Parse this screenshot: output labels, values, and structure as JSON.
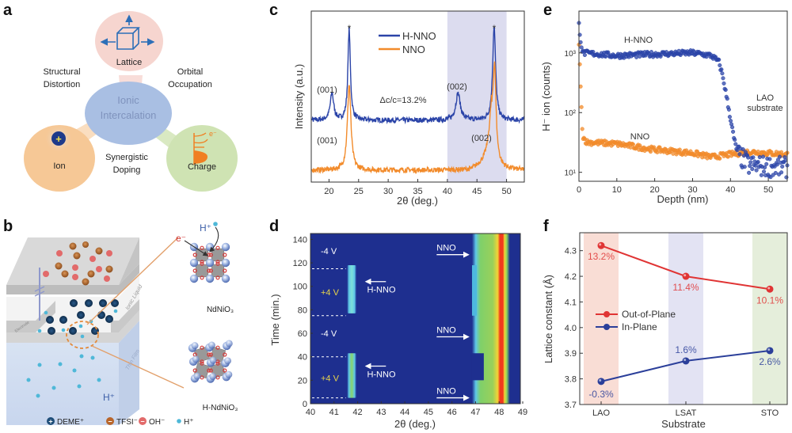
{
  "figure": {
    "panels": [
      "a",
      "b",
      "c",
      "d",
      "e",
      "f"
    ]
  },
  "panel_a": {
    "label": "a",
    "center": [
      "Ionic",
      "Intercalation"
    ],
    "nodes": [
      {
        "name": "Lattice",
        "color": "#f6d5cf"
      },
      {
        "name": "Ion",
        "color": "#f6c896"
      },
      {
        "name": "Charge",
        "color": "#cfe3b3"
      }
    ],
    "relations": {
      "top_left": [
        "Structural",
        "Distortion"
      ],
      "top_right": [
        "Orbital",
        "Occupation"
      ],
      "bottom": [
        "Synergistic",
        "Doping"
      ]
    },
    "charge_symbol": "e⁻",
    "ion_symbol": "+"
  },
  "panel_b": {
    "label": "b",
    "device_labels": {
      "ionic_liquid": "Ionic Liquid",
      "thin_film": "Thin Film",
      "electrode": "Electrode",
      "proton": "H⁺"
    },
    "structures": [
      {
        "name": "NdNiO₃",
        "annotations": [
          "H⁺",
          "e⁻"
        ]
      },
      {
        "name": "H-NdNiO₃"
      }
    ],
    "legend": [
      {
        "symbol": "+",
        "label": "DEME⁺",
        "color": "#1f4e79"
      },
      {
        "symbol": "−",
        "label": "TFSI⁻",
        "color": "#b8652a"
      },
      {
        "symbol": "−",
        "label": "OH⁻",
        "color": "#e26a6a"
      },
      {
        "symbol": "•",
        "label": "H⁺",
        "color": "#4fb8d8"
      }
    ]
  },
  "chart_data": [
    {
      "id": "c",
      "type": "line",
      "label": "c",
      "title": "",
      "xlabel": "2θ (deg.)",
      "ylabel": "Intensity (a.u.)",
      "xlim": [
        17,
        53
      ],
      "xticks": [
        20,
        25,
        30,
        35,
        40,
        45,
        50
      ],
      "yticks": [],
      "shaded_region": {
        "x": [
          40,
          50
        ],
        "color": "#dcdcef"
      },
      "series": [
        {
          "name": "H-NNO",
          "color": "#2b44a8",
          "offset": 0.55,
          "peaks": [
            {
              "x": 20.5,
              "h": 0.19,
              "w": 0.35
            },
            {
              "x": 23.4,
              "h": 0.64,
              "w": 0.25
            },
            {
              "x": 41.8,
              "h": 0.19,
              "w": 0.45
            },
            {
              "x": 47.9,
              "h": 0.66,
              "w": 0.3
            }
          ],
          "baseline": 0.0
        },
        {
          "name": "NNO",
          "color": "#f28b2b",
          "offset": 0.0,
          "peaks": [
            {
              "x": 23.4,
              "h": 0.6,
              "w": 0.35
            },
            {
              "x": 47.6,
              "h": 0.38,
              "w": 0.6
            },
            {
              "x": 48.0,
              "h": 0.5,
              "w": 0.25
            }
          ],
          "baseline": 0.0
        }
      ],
      "annotations": [
        {
          "text": "(001)",
          "x": 20.5,
          "series": "H-NNO"
        },
        {
          "text": "(002)",
          "x": 41.8,
          "series": "H-NNO"
        },
        {
          "text": "(001)",
          "x": 23.4,
          "series": "NNO"
        },
        {
          "text": "(002)",
          "x": 47.6,
          "series": "NNO"
        },
        {
          "text": "*",
          "x": 23.4
        },
        {
          "text": "*",
          "x": 47.9
        },
        {
          "text": "Δc/c=13.2%"
        }
      ],
      "legend": "top-center"
    },
    {
      "id": "d",
      "type": "heatmap",
      "label": "d",
      "xlabel": "2θ (deg.)",
      "ylabel": "Time (min.)",
      "xlim": [
        40,
        49
      ],
      "ylim": [
        0,
        145
      ],
      "xticks": [
        40,
        41,
        42,
        43,
        44,
        45,
        46,
        47,
        48,
        49
      ],
      "yticks": [
        0,
        20,
        40,
        60,
        80,
        100,
        120,
        140
      ],
      "background": "#1e2f8f",
      "voltage_segments": [
        {
          "label": "+4 V",
          "t": [
            5,
            40
          ],
          "color": "#e8d44a"
        },
        {
          "label": "-4 V",
          "t": [
            40,
            75
          ],
          "color": "#ffffff"
        },
        {
          "label": "+4 V",
          "t": [
            75,
            115
          ],
          "color": "#e8d44a"
        },
        {
          "label": "-4 V",
          "t": [
            115,
            145
          ],
          "color": "#ffffff"
        }
      ],
      "dashed_lines_t": [
        5,
        40,
        75,
        115
      ],
      "features": [
        {
          "name": "H-NNO",
          "x_center": 41.75,
          "t": [
            5,
            43
          ]
        },
        {
          "name": "H-NNO",
          "x_center": 41.75,
          "t": [
            77,
            118
          ]
        },
        {
          "name": "NNO",
          "x_center": 48.0,
          "t": [
            0,
            145
          ]
        }
      ],
      "arrow_labels": [
        {
          "text": "H-NNO",
          "t": 28,
          "direction": "left"
        },
        {
          "text": "H-NNO",
          "t": 100,
          "direction": "left"
        },
        {
          "text": "NNO",
          "t": 5,
          "direction": "right"
        },
        {
          "text": "NNO",
          "t": 57,
          "direction": "right"
        },
        {
          "text": "NNO",
          "t": 127,
          "direction": "right"
        }
      ]
    },
    {
      "id": "e",
      "type": "scatter",
      "label": "e",
      "xlabel": "Depth (nm)",
      "ylabel": "H⁻ ion (counts)",
      "yscale": "log",
      "xlim": [
        0,
        55
      ],
      "ylim_log10": [
        0.85,
        3.7
      ],
      "xticks": [
        0,
        10,
        20,
        30,
        40,
        50
      ],
      "yticks": [
        "10¹",
        "10²",
        "10³"
      ],
      "series": [
        {
          "name": "H-NNO",
          "color": "#2b44a8",
          "profile": [
            [
              0,
              3000
            ],
            [
              0.5,
              1500
            ],
            [
              1,
              1000
            ],
            [
              10,
              900
            ],
            [
              20,
              950
            ],
            [
              30,
              1000
            ],
            [
              35,
              900
            ],
            [
              37,
              700
            ],
            [
              38,
              400
            ],
            [
              39,
              180
            ],
            [
              40,
              80
            ],
            [
              41,
              35
            ],
            [
              42,
              20
            ],
            [
              45,
              13
            ],
            [
              55,
              12
            ]
          ]
        },
        {
          "name": "NNO",
          "color": "#f28b2b",
          "profile": [
            [
              0,
              1500
            ],
            [
              0.5,
              200
            ],
            [
              1,
              40
            ],
            [
              2,
              32
            ],
            [
              10,
              30
            ],
            [
              20,
              24
            ],
            [
              30,
              21
            ],
            [
              35,
              18
            ],
            [
              40,
              20
            ],
            [
              45,
              22
            ],
            [
              55,
              20
            ]
          ]
        }
      ],
      "annotations": [
        {
          "text": "H-NNO"
        },
        {
          "text": "NNO"
        },
        {
          "text": "LAO"
        },
        {
          "text": "substrate"
        }
      ]
    },
    {
      "id": "f",
      "type": "line",
      "label": "f",
      "xlabel": "Substrate",
      "ylabel": "Lattice constant (Å)",
      "categories": [
        "LAO",
        "LSAT",
        "STO"
      ],
      "ylim": [
        3.7,
        4.37
      ],
      "yticks": [
        "3.7",
        "3.8",
        "3.9",
        "4.0",
        "4.1",
        "4.2",
        "4.3"
      ],
      "category_bands": [
        "#f9ddd5",
        "#e3e3f3",
        "#e5eedb"
      ],
      "series": [
        {
          "name": "Out-of-Plane",
          "color": "#e03434",
          "values": [
            4.32,
            4.2,
            4.15
          ],
          "labels": [
            "13.2%",
            "11.4%",
            "10.1%"
          ]
        },
        {
          "name": "In-Plane",
          "color": "#2b3f9a",
          "values": [
            3.79,
            3.87,
            3.91
          ],
          "labels": [
            "-0.3%",
            "1.6%",
            "2.6%"
          ]
        }
      ],
      "legend": "center-left"
    }
  ]
}
